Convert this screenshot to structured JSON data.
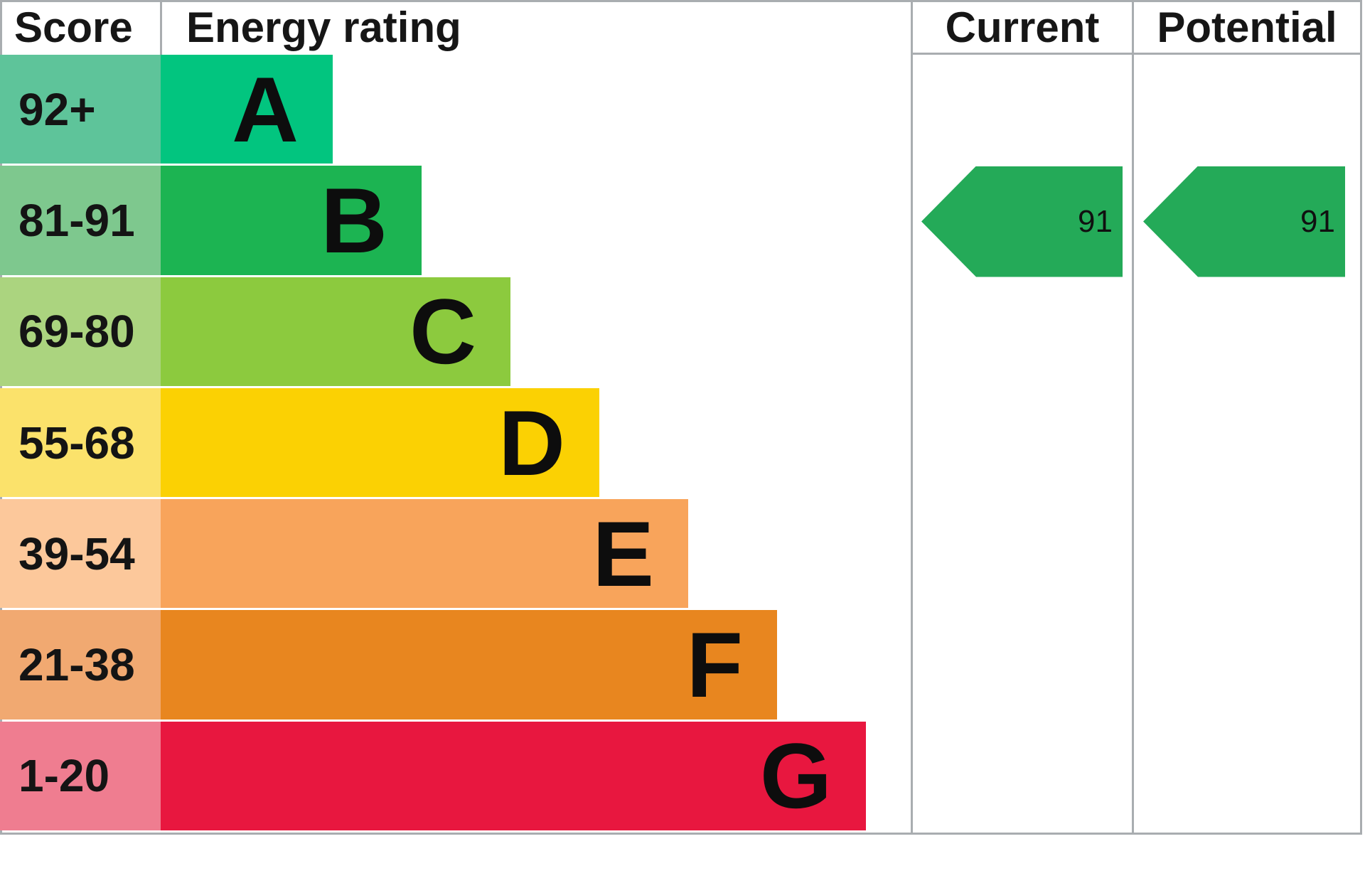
{
  "header": {
    "score": "Score",
    "energy_rating": "Energy rating",
    "current": "Current",
    "potential": "Potential"
  },
  "chart_data": {
    "type": "bar",
    "title": "EPC energy efficiency rating chart",
    "columns": [
      "Score",
      "Energy rating",
      "Current",
      "Potential"
    ],
    "bands": [
      {
        "score_range": "92+",
        "rating": "A",
        "bar_color": "#02c57f",
        "score_bg": "#5ec49a",
        "bar_length": 242
      },
      {
        "score_range": "81-91",
        "rating": "B",
        "bar_color": "#1cb452",
        "score_bg": "#7ec88e",
        "bar_length": 367
      },
      {
        "score_range": "69-80",
        "rating": "C",
        "bar_color": "#8cca3e",
        "score_bg": "#abd47f",
        "bar_length": 492
      },
      {
        "score_range": "55-68",
        "rating": "D",
        "bar_color": "#fbd103",
        "score_bg": "#fbe26b",
        "bar_length": 617
      },
      {
        "score_range": "39-54",
        "rating": "E",
        "bar_color": "#f8a45b",
        "score_bg": "#fcc89b",
        "bar_length": 742
      },
      {
        "score_range": "21-38",
        "rating": "F",
        "bar_color": "#e8861f",
        "score_bg": "#f1a971",
        "bar_length": 867
      },
      {
        "score_range": "1-20",
        "rating": "G",
        "bar_color": "#e8173f",
        "score_bg": "#ef7d90",
        "bar_length": 992
      }
    ],
    "current": {
      "value": 91,
      "band": "B"
    },
    "potential": {
      "value": 91,
      "band": "B"
    }
  },
  "arrows": {
    "current_value": "91",
    "potential_value": "91",
    "color": "#24aa58"
  },
  "colors": {
    "border": "#a9adb0",
    "background": "#ffffff"
  }
}
